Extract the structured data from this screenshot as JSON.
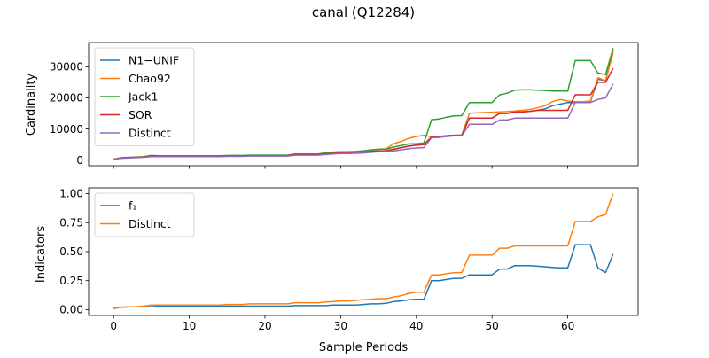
{
  "chart_data": {
    "title": "canal (Q12284)",
    "xlabel": "Sample Periods",
    "x_ticks": [
      0,
      10,
      20,
      30,
      40,
      50,
      60
    ],
    "panels": [
      {
        "type": "line",
        "ylabel": "Cardinality",
        "xlim": [
          -3.3,
          69.3
        ],
        "ylim": [
          -1800,
          37800
        ],
        "y_ticks": [
          0,
          10000,
          20000,
          30000
        ],
        "legend_position": "upper-left",
        "x": [
          0,
          1,
          2,
          3,
          4,
          5,
          6,
          7,
          8,
          9,
          10,
          11,
          12,
          13,
          14,
          15,
          16,
          17,
          18,
          19,
          20,
          21,
          22,
          23,
          24,
          25,
          26,
          27,
          28,
          29,
          30,
          31,
          32,
          33,
          34,
          35,
          36,
          37,
          38,
          39,
          40,
          41,
          42,
          43,
          44,
          45,
          46,
          47,
          48,
          49,
          50,
          51,
          52,
          53,
          54,
          55,
          56,
          57,
          58,
          59,
          60,
          61,
          62,
          63,
          64,
          65,
          66
        ],
        "series": [
          {
            "name": "N1−UNIF",
            "color": "#1f77b4",
            "values": [
              300,
              700,
              800,
              900,
              1000,
              1300,
              1200,
              1200,
              1200,
              1200,
              1200,
              1200,
              1200,
              1200,
              1200,
              1300,
              1300,
              1300,
              1400,
              1400,
              1400,
              1400,
              1400,
              1400,
              1800,
              1800,
              1800,
              1800,
              2000,
              2200,
              2300,
              2300,
              2400,
              2500,
              2800,
              3000,
              3000,
              3500,
              4000,
              4500,
              4800,
              5000,
              7500,
              7600,
              7800,
              8000,
              8000,
              13500,
              13500,
              13500,
              13500,
              15000,
              15000,
              15500,
              15500,
              15700,
              16000,
              16500,
              17500,
              18000,
              18500,
              18500,
              18500,
              18700,
              26000,
              25500,
              35500
            ]
          },
          {
            "name": "Chao92",
            "color": "#ff7f0e",
            "values": [
              300,
              700,
              800,
              900,
              1000,
              1300,
              1200,
              1200,
              1200,
              1200,
              1200,
              1200,
              1200,
              1200,
              1200,
              1300,
              1300,
              1300,
              1400,
              1400,
              1400,
              1400,
              1400,
              1400,
              1800,
              1800,
              1800,
              1800,
              2000,
              2400,
              2500,
              2500,
              2600,
              2800,
              3200,
              3500,
              3600,
              5300,
              6000,
              7000,
              7600,
              8000,
              7500,
              7600,
              7800,
              8000,
              8000,
              15000,
              15200,
              15300,
              15400,
              15500,
              15600,
              15800,
              16000,
              16300,
              16800,
              17500,
              18800,
              19500,
              19000,
              18800,
              18800,
              19000,
              26500,
              25500,
              34500
            ]
          },
          {
            "name": "Jack1",
            "color": "#2ca02c",
            "values": [
              300,
              800,
              900,
              1000,
              1100,
              1500,
              1400,
              1400,
              1400,
              1400,
              1400,
              1400,
              1400,
              1400,
              1400,
              1500,
              1500,
              1500,
              1600,
              1600,
              1600,
              1600,
              1600,
              1600,
              2000,
              2000,
              2000,
              2000,
              2300,
              2600,
              2700,
              2700,
              2800,
              3000,
              3300,
              3500,
              3500,
              4200,
              4700,
              5200,
              5300,
              5500,
              13000,
              13200,
              13800,
              14200,
              14300,
              18500,
              18500,
              18500,
              18500,
              21000,
              21500,
              22500,
              22600,
              22600,
              22500,
              22400,
              22200,
              22200,
              22200,
              32000,
              32000,
              32000,
              28000,
              27500,
              36000
            ]
          },
          {
            "name": "SOR",
            "color": "#d62728",
            "values": [
              300,
              700,
              800,
              900,
              1000,
              1300,
              1200,
              1200,
              1200,
              1200,
              1200,
              1200,
              1200,
              1200,
              1200,
              1300,
              1300,
              1300,
              1400,
              1400,
              1400,
              1400,
              1400,
              1400,
              1800,
              1800,
              1800,
              1800,
              2000,
              2200,
              2300,
              2300,
              2400,
              2500,
              2800,
              3000,
              3000,
              3500,
              4000,
              4500,
              4800,
              5000,
              7500,
              7600,
              7800,
              8000,
              8000,
              13500,
              13500,
              13500,
              13500,
              15000,
              15000,
              15500,
              15500,
              15700,
              16000,
              16000,
              16000,
              16000,
              16000,
              21000,
              21000,
              21000,
              25000,
              25000,
              29500
            ]
          },
          {
            "name": "Distinct",
            "color": "#9467bd",
            "values": [
              300,
              600,
              700,
              800,
              900,
              1100,
              1100,
              1100,
              1100,
              1100,
              1100,
              1100,
              1100,
              1100,
              1100,
              1200,
              1200,
              1200,
              1300,
              1300,
              1300,
              1300,
              1300,
              1300,
              1600,
              1600,
              1600,
              1600,
              1800,
              2000,
              2100,
              2100,
              2200,
              2300,
              2500,
              2700,
              2700,
              3000,
              3300,
              3700,
              3900,
              4000,
              7200,
              7300,
              7600,
              7800,
              7800,
              11500,
              11500,
              11500,
              11500,
              12900,
              12900,
              13500,
              13500,
              13500,
              13500,
              13500,
              13500,
              13500,
              13500,
              18500,
              18500,
              18500,
              19500,
              20000,
              24500
            ]
          }
        ]
      },
      {
        "type": "line",
        "ylabel": "Indicators",
        "xlim": [
          -3.3,
          69.3
        ],
        "ylim": [
          -0.05,
          1.05
        ],
        "y_ticks": [
          0.0,
          0.25,
          0.5,
          0.75,
          1.0
        ],
        "y_tick_labels": [
          "0.00",
          "0.25",
          "0.50",
          "0.75",
          "1.00"
        ],
        "legend_position": "upper-left",
        "x": [
          0,
          1,
          2,
          3,
          4,
          5,
          6,
          7,
          8,
          9,
          10,
          11,
          12,
          13,
          14,
          15,
          16,
          17,
          18,
          19,
          20,
          21,
          22,
          23,
          24,
          25,
          26,
          27,
          28,
          29,
          30,
          31,
          32,
          33,
          34,
          35,
          36,
          37,
          38,
          39,
          40,
          41,
          42,
          43,
          44,
          45,
          46,
          47,
          48,
          49,
          50,
          51,
          52,
          53,
          54,
          55,
          56,
          57,
          58,
          59,
          60,
          61,
          62,
          63,
          64,
          65,
          66
        ],
        "series": [
          {
            "name": "f₁",
            "color": "#1f77b4",
            "values": [
              0.01,
              0.02,
              0.025,
              0.025,
              0.03,
              0.035,
              0.03,
              0.03,
              0.03,
              0.03,
              0.03,
              0.03,
              0.03,
              0.03,
              0.03,
              0.03,
              0.03,
              0.03,
              0.03,
              0.03,
              0.03,
              0.03,
              0.03,
              0.03,
              0.035,
              0.035,
              0.035,
              0.035,
              0.035,
              0.04,
              0.04,
              0.04,
              0.04,
              0.045,
              0.05,
              0.05,
              0.055,
              0.07,
              0.075,
              0.085,
              0.09,
              0.09,
              0.25,
              0.25,
              0.26,
              0.27,
              0.27,
              0.3,
              0.3,
              0.3,
              0.3,
              0.35,
              0.35,
              0.38,
              0.38,
              0.38,
              0.375,
              0.37,
              0.365,
              0.36,
              0.36,
              0.56,
              0.56,
              0.56,
              0.36,
              0.32,
              0.48
            ]
          },
          {
            "name": "Distinct",
            "color": "#ff7f0e",
            "values": [
              0.01,
              0.02,
              0.025,
              0.025,
              0.03,
              0.04,
              0.04,
              0.04,
              0.04,
              0.04,
              0.04,
              0.04,
              0.04,
              0.04,
              0.04,
              0.045,
              0.045,
              0.045,
              0.05,
              0.05,
              0.05,
              0.05,
              0.05,
              0.05,
              0.06,
              0.06,
              0.06,
              0.06,
              0.065,
              0.07,
              0.075,
              0.075,
              0.08,
              0.085,
              0.09,
              0.095,
              0.095,
              0.11,
              0.12,
              0.14,
              0.15,
              0.15,
              0.3,
              0.3,
              0.31,
              0.32,
              0.32,
              0.47,
              0.47,
              0.47,
              0.47,
              0.53,
              0.53,
              0.55,
              0.55,
              0.55,
              0.55,
              0.55,
              0.55,
              0.55,
              0.55,
              0.76,
              0.76,
              0.76,
              0.8,
              0.82,
              1.0
            ]
          }
        ]
      }
    ]
  }
}
